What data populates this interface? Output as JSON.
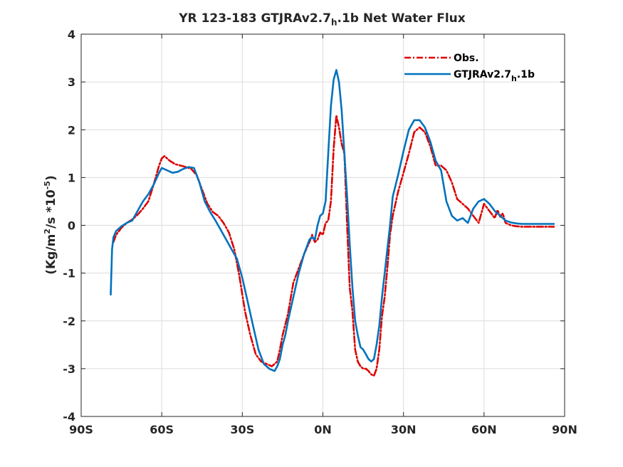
{
  "title": {
    "prefix": "YR 123-183 GTJRAv2.7",
    "subscript": "h",
    "suffix": ".1b  Net Water Flux"
  },
  "ylabel": {
    "part1": "(Kg/m",
    "sup1": "2",
    "part2": "/s *10",
    "sup2": "-5",
    "part3": ")"
  },
  "colors": {
    "obs": "#dd0000",
    "model": "#0072bd",
    "axis": "#262626",
    "grid": "#dcdcdc"
  },
  "chart_data": {
    "type": "line",
    "title": "YR 123-183 GTJRAv2.7h.1b  Net Water Flux",
    "xlabel": "",
    "ylabel": "(Kg/m2/s *10-5)",
    "xlim": [
      -90,
      90
    ],
    "ylim": [
      -4,
      4
    ],
    "grid": true,
    "legend_location": "top-right",
    "x_ticks": [
      -90,
      -60,
      -30,
      0,
      30,
      60,
      90
    ],
    "x_tick_labels": [
      "90S",
      "60S",
      "30S",
      "0N",
      "30N",
      "60N",
      "90N"
    ],
    "y_ticks": [
      -4,
      -3,
      -2,
      -1,
      0,
      1,
      2,
      3,
      4
    ],
    "y_tick_labels": [
      "-4",
      "-3",
      "-2",
      "-1",
      "0",
      "1",
      "2",
      "3",
      "4"
    ],
    "series": [
      {
        "name": "Obs.",
        "legend_label": "Obs.",
        "style": "dash-dot",
        "color": "#dd0000",
        "x": [
          -78,
          -77,
          -75,
          -73,
          -71,
          -69,
          -67,
          -65,
          -63,
          -61,
          -60,
          -59,
          -57,
          -55,
          -53,
          -51,
          -49,
          -47,
          -45,
          -43,
          -41,
          -39,
          -37,
          -35,
          -33,
          -31,
          -29,
          -27,
          -25,
          -23,
          -21,
          -19,
          -18,
          -17,
          -16,
          -15,
          -13,
          -11,
          -9,
          -7,
          -5,
          -4,
          -3,
          -2,
          -1,
          0,
          1,
          2,
          3,
          4,
          5,
          6,
          7,
          8,
          9,
          10,
          11,
          12,
          13,
          14,
          15,
          16,
          17,
          18,
          19,
          20,
          21,
          22,
          23,
          24,
          25,
          26,
          28,
          30,
          32,
          34,
          36,
          38,
          40,
          42,
          44,
          46,
          48,
          50,
          52,
          54,
          56,
          58,
          60,
          62,
          64,
          65,
          66,
          67,
          68,
          70,
          72,
          74,
          76,
          78,
          80,
          82,
          84,
          86
        ],
        "y": [
          -0.35,
          -0.2,
          -0.05,
          0.05,
          0.12,
          0.22,
          0.35,
          0.5,
          0.85,
          1.25,
          1.4,
          1.45,
          1.35,
          1.28,
          1.25,
          1.22,
          1.18,
          1.05,
          0.75,
          0.45,
          0.28,
          0.2,
          0.05,
          -0.15,
          -0.5,
          -1.1,
          -1.8,
          -2.3,
          -2.7,
          -2.85,
          -2.9,
          -2.95,
          -2.9,
          -2.85,
          -2.6,
          -2.3,
          -1.85,
          -1.2,
          -0.9,
          -0.6,
          -0.35,
          -0.2,
          -0.35,
          -0.3,
          -0.15,
          -0.2,
          0.05,
          0.1,
          0.5,
          1.6,
          2.3,
          2.05,
          1.7,
          1.5,
          0.0,
          -1.3,
          -1.8,
          -2.6,
          -2.85,
          -2.95,
          -3.0,
          -3.0,
          -3.05,
          -3.12,
          -3.15,
          -3.0,
          -2.6,
          -1.9,
          -1.5,
          -0.9,
          -0.2,
          0.2,
          0.7,
          1.1,
          1.5,
          1.95,
          2.05,
          1.95,
          1.65,
          1.25,
          1.25,
          1.15,
          0.9,
          0.55,
          0.45,
          0.35,
          0.2,
          0.05,
          0.45,
          0.3,
          0.15,
          0.32,
          0.18,
          0.25,
          0.05,
          0.0,
          -0.02,
          -0.03,
          -0.03,
          -0.03,
          -0.03,
          -0.03,
          -0.03,
          -0.03
        ]
      },
      {
        "name": "GTJRAv2.7h.1b",
        "legend_label": "GTJRAv2.7h.1b",
        "style": "solid",
        "color": "#0072bd",
        "x": [
          -79,
          -78.5,
          -78,
          -77,
          -75,
          -73,
          -71,
          -69,
          -67,
          -65,
          -63,
          -61,
          -60,
          -58,
          -56,
          -54,
          -52,
          -50,
          -48,
          -46,
          -44,
          -42,
          -40,
          -38,
          -36,
          -34,
          -32,
          -30,
          -28,
          -26,
          -24,
          -22,
          -20,
          -18,
          -17,
          -16,
          -15,
          -14,
          -13,
          -11,
          -9,
          -7,
          -5,
          -4,
          -3,
          -2,
          -1,
          0,
          1,
          2,
          3,
          4,
          5,
          6,
          7,
          8,
          9,
          10,
          11,
          12,
          13,
          14,
          15,
          16,
          17,
          18,
          19,
          20,
          21,
          22,
          23,
          24,
          25,
          26,
          28,
          30,
          32,
          34,
          36,
          38,
          40,
          42,
          44,
          46,
          48,
          50,
          52,
          54,
          56,
          58,
          60,
          62,
          64,
          65,
          66,
          67,
          68,
          70,
          72,
          74,
          76,
          78,
          80,
          82,
          84,
          86
        ],
        "y": [
          -1.45,
          -0.5,
          -0.25,
          -0.12,
          -0.02,
          0.05,
          0.1,
          0.3,
          0.5,
          0.65,
          0.85,
          1.1,
          1.2,
          1.15,
          1.1,
          1.12,
          1.18,
          1.22,
          1.2,
          0.9,
          0.5,
          0.28,
          0.1,
          -0.1,
          -0.3,
          -0.5,
          -0.7,
          -1.1,
          -1.6,
          -2.1,
          -2.6,
          -2.9,
          -3.0,
          -3.05,
          -2.95,
          -2.8,
          -2.5,
          -2.3,
          -2.0,
          -1.5,
          -1.0,
          -0.6,
          -0.3,
          -0.25,
          -0.3,
          0.0,
          0.2,
          0.25,
          0.5,
          1.5,
          2.5,
          3.05,
          3.25,
          3.0,
          2.4,
          1.5,
          0.6,
          -0.4,
          -1.3,
          -2.0,
          -2.3,
          -2.55,
          -2.6,
          -2.7,
          -2.8,
          -2.85,
          -2.8,
          -2.5,
          -2.1,
          -1.5,
          -1.0,
          -0.5,
          0.0,
          0.6,
          1.05,
          1.55,
          2.0,
          2.2,
          2.2,
          2.05,
          1.75,
          1.35,
          1.15,
          0.5,
          0.2,
          0.1,
          0.15,
          0.05,
          0.35,
          0.5,
          0.55,
          0.45,
          0.3,
          0.25,
          0.2,
          0.15,
          0.1,
          0.06,
          0.04,
          0.03,
          0.03,
          0.03,
          0.03,
          0.03,
          0.03,
          0.03
        ]
      }
    ]
  }
}
